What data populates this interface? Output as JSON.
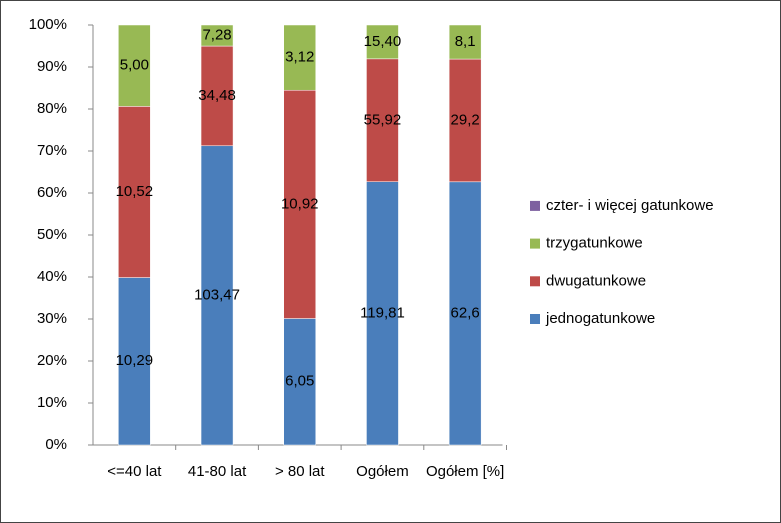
{
  "chart_data": {
    "type": "bar",
    "stacking": "percent",
    "categories": [
      "<=40 lat",
      "41-80 lat",
      "> 80 lat",
      "Ogółem",
      "Ogółem [%]"
    ],
    "series": [
      {
        "name": "jednogatunkowe",
        "color": "#4a7ebb",
        "values": [
          10.29,
          103.47,
          6.05,
          119.81,
          62.6
        ],
        "value_labels": [
          "10,29",
          "103,47",
          "6,05",
          "119,81",
          "62,6"
        ]
      },
      {
        "name": "dwugatunkowe",
        "color": "#be4b48",
        "values": [
          10.52,
          34.48,
          10.92,
          55.92,
          29.2
        ],
        "value_labels": [
          "10,52",
          "34,48",
          "10,92",
          "55,92",
          "29,2"
        ]
      },
      {
        "name": "trzygatunkowe",
        "color": "#98b954",
        "values": [
          5.0,
          7.28,
          3.12,
          15.4,
          8.1
        ],
        "value_labels": [
          "5,00",
          "7,28",
          "3,12",
          "15,40",
          "8,1"
        ]
      },
      {
        "name": "czter- i więcej gatunkowe",
        "color": "#7d60a0",
        "values": [
          null,
          null,
          null,
          null,
          null
        ]
      }
    ],
    "ylim": [
      0,
      100
    ],
    "yticks": [
      {
        "value": 0,
        "label": "0%"
      },
      {
        "value": 10,
        "label": "10%"
      },
      {
        "value": 20,
        "label": "20%"
      },
      {
        "value": 30,
        "label": "30%"
      },
      {
        "value": 40,
        "label": "40%"
      },
      {
        "value": 50,
        "label": "50%"
      },
      {
        "value": 60,
        "label": "60%"
      },
      {
        "value": 70,
        "label": "70%"
      },
      {
        "value": 80,
        "label": "80%"
      },
      {
        "value": 90,
        "label": "90%"
      },
      {
        "value": 100,
        "label": "100%"
      }
    ],
    "grid": false,
    "legend": "right"
  }
}
